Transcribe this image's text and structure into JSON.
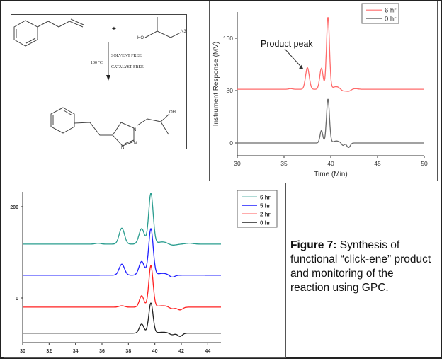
{
  "scheme": {
    "reagent_sign": "+",
    "azide_labels": {
      "ho": "HO",
      "n3": "N3"
    },
    "temperature": "100 °C",
    "condition1": "SOLVENT FREE",
    "condition2": "CATALYST FREE",
    "product_labels": {
      "oh": "OH",
      "n1": "N",
      "n2": "N",
      "n3": "N"
    }
  },
  "caption": {
    "label": "Figure 7:",
    "text": "Synthesis of functional “click-ene” product and monitoring of the reaction using GPC."
  },
  "colors": {
    "red6": "#ff6b6b",
    "gray0": "#6b6b6b",
    "teal": "#2a9d8f",
    "blue": "#1f1fff",
    "red": "#ff2020",
    "black": "#222222"
  },
  "chart_data": [
    {
      "type": "line",
      "title": "",
      "xlabel": "Time (Min)",
      "ylabel": "Instrument Response (MV)",
      "xlim": [
        30,
        50
      ],
      "ylim": [
        -20,
        200
      ],
      "xticks": [
        "30",
        "35",
        "40",
        "45",
        "50"
      ],
      "yticks": [
        "0",
        "80",
        "160"
      ],
      "legend_position": "top-right",
      "annotation": "Product peak",
      "annotation_target": [
        37.5,
        115
      ],
      "series": [
        {
          "name": "6 hr",
          "color": "#ff6b6b",
          "baseline": 82,
          "peaks": [
            [
              35.7,
              1,
              0.2
            ],
            [
              37.5,
              33,
              0.2
            ],
            [
              39.0,
              32,
              0.18
            ],
            [
              39.7,
              110,
              0.16
            ],
            [
              40.6,
              4,
              0.4
            ],
            [
              41.3,
              -3,
              0.25
            ],
            [
              41.9,
              -3,
              0.25
            ],
            [
              42.6,
              1,
              0.3
            ]
          ]
        },
        {
          "name": "0 hr",
          "color": "#6b6b6b",
          "baseline": 0,
          "peaks": [
            [
              39.0,
              19,
              0.15
            ],
            [
              39.7,
              67,
              0.16
            ],
            [
              40.6,
              3,
              0.35
            ],
            [
              41.3,
              -4,
              0.15
            ],
            [
              41.9,
              -7,
              0.18
            ]
          ]
        }
      ]
    },
    {
      "type": "line",
      "title": "",
      "xlabel": "",
      "ylabel": "",
      "xlim": [
        30,
        45
      ],
      "ylim": [
        -98,
        236
      ],
      "xticks": [
        "30",
        "32",
        "34",
        "36",
        "38",
        "40",
        "42",
        "44"
      ],
      "yticks": [
        "0",
        "200"
      ],
      "legend_position": "top-right",
      "series": [
        {
          "name": "6 hr",
          "color": "#2a9d8f",
          "baseline": 118,
          "peaks": [
            [
              35.7,
              2,
              0.2
            ],
            [
              37.5,
              35,
              0.2
            ],
            [
              39.0,
              34,
              0.2
            ],
            [
              39.7,
              111,
              0.17
            ],
            [
              40.6,
              5,
              0.4
            ],
            [
              41.3,
              -3,
              0.3
            ],
            [
              42.6,
              2,
              0.3
            ]
          ]
        },
        {
          "name": "5 hr",
          "color": "#1f1fff",
          "baseline": 50,
          "peaks": [
            [
              37.5,
              24,
              0.2
            ],
            [
              39.0,
              30,
              0.2
            ],
            [
              39.7,
              102,
              0.17
            ],
            [
              40.6,
              4,
              0.4
            ],
            [
              41.3,
              -5,
              0.2
            ]
          ]
        },
        {
          "name": "2 hr",
          "color": "#ff2020",
          "baseline": -20,
          "peaks": [
            [
              37.5,
              3,
              0.2
            ],
            [
              39.0,
              25,
              0.17
            ],
            [
              39.7,
              91,
              0.16
            ],
            [
              40.6,
              3,
              0.4
            ],
            [
              41.3,
              -4,
              0.2
            ],
            [
              41.9,
              -6,
              0.2
            ]
          ]
        },
        {
          "name": "0 hr",
          "color": "#222222",
          "baseline": -77,
          "peaks": [
            [
              39.0,
              20,
              0.17
            ],
            [
              39.7,
              66,
              0.16
            ],
            [
              40.6,
              2,
              0.4
            ],
            [
              41.3,
              -4,
              0.18
            ],
            [
              41.9,
              -7,
              0.18
            ]
          ]
        }
      ]
    }
  ]
}
